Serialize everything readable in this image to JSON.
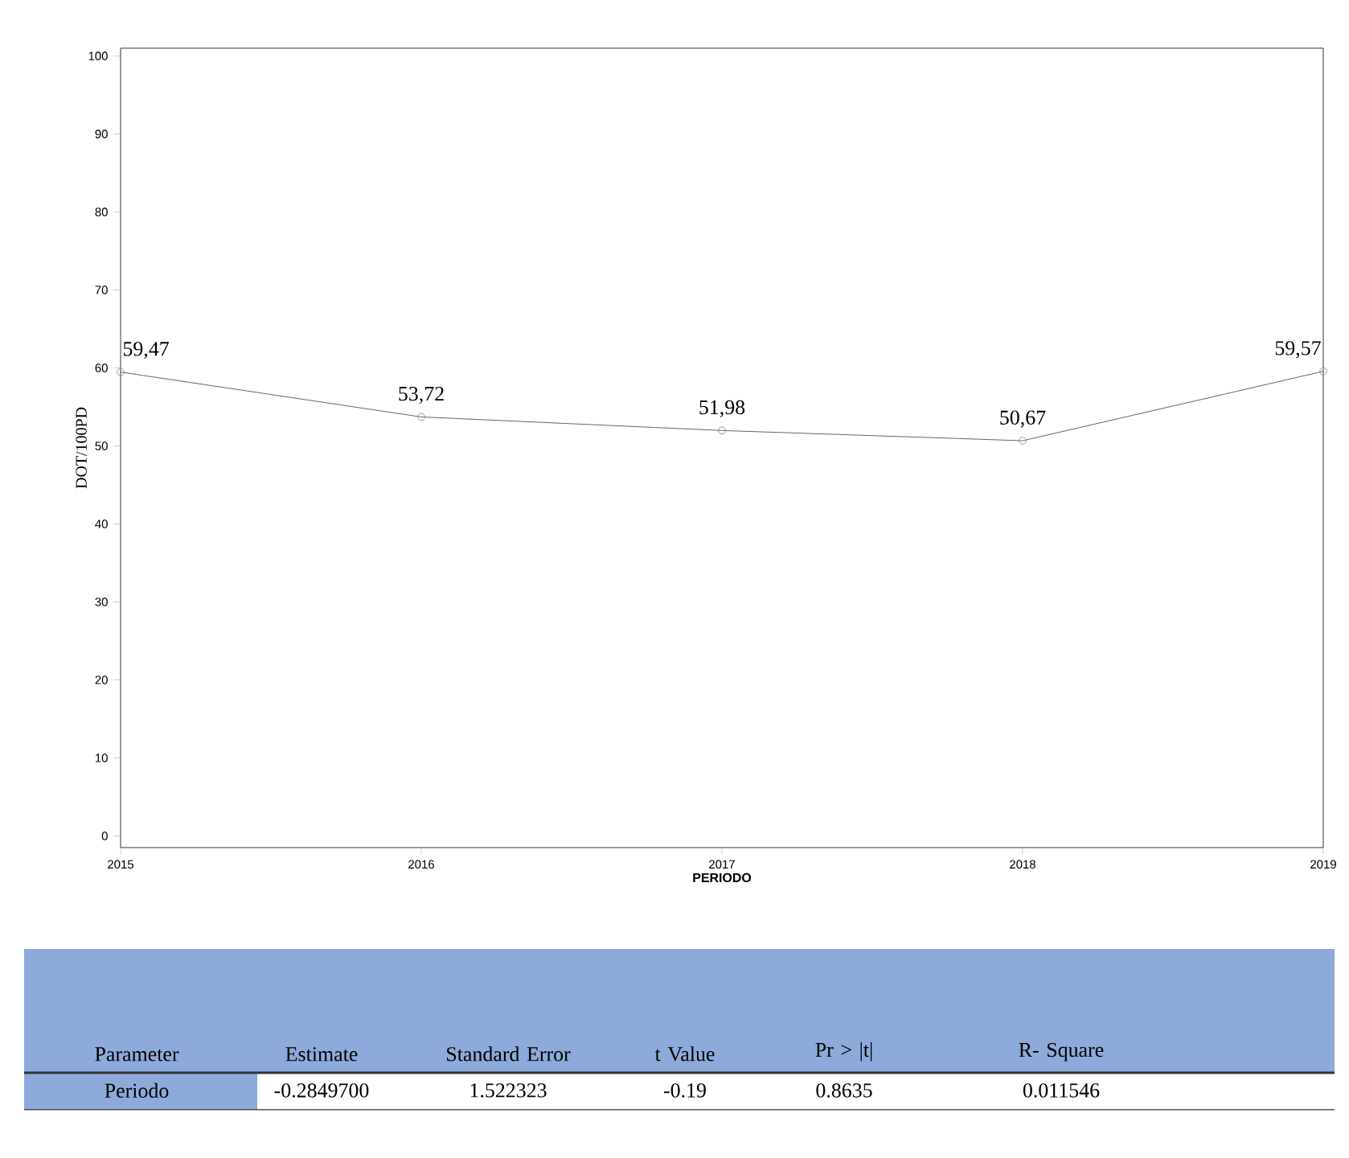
{
  "chart_data": {
    "type": "line",
    "xlabel": "PERIODO",
    "ylabel": "DOT/100PD",
    "x": [
      2015,
      2016,
      2017,
      2018,
      2019
    ],
    "series": [
      {
        "color": "#404040",
        "values": [
          59.47,
          53.72,
          51.98,
          50.67,
          59.57
        ],
        "value_labels": [
          "59,47",
          "53,72",
          "51,98",
          "50,67",
          "59,57"
        ]
      }
    ],
    "xlim": [
      2015,
      2019
    ],
    "xticks": [
      2015,
      2016,
      2017,
      2018,
      2019
    ],
    "ylim": [
      -1.5,
      101
    ],
    "yticks": [
      0,
      10,
      20,
      30,
      40,
      50,
      60,
      70,
      80,
      90,
      100
    ],
    "marker": "circle",
    "line_style": "solid",
    "annotations": [
      "Parameter",
      "Estimate",
      "Standard Error",
      "t Value",
      "Pr > |t|",
      "R- Square",
      "Periodo",
      "-0.2849700",
      "1.522323",
      "-0.19",
      "0.8635",
      "0.011546"
    ]
  }
}
